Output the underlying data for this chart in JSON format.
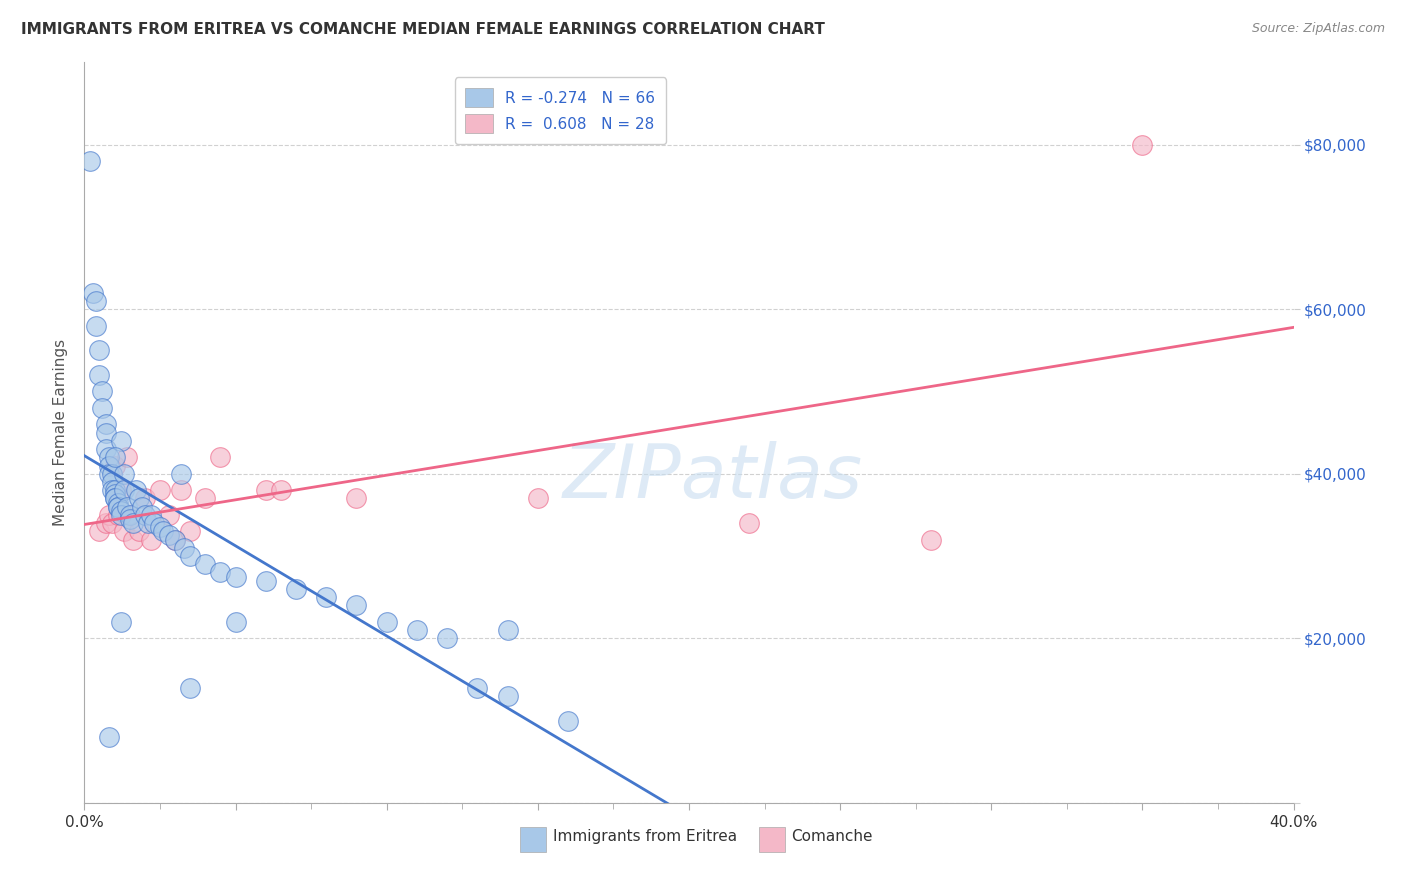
{
  "title": "IMMIGRANTS FROM ERITREA VS COMANCHE MEDIAN FEMALE EARNINGS CORRELATION CHART",
  "source": "Source: ZipAtlas.com",
  "ylabel": "Median Female Earnings",
  "R1": -0.274,
  "N1": 66,
  "R2": 0.608,
  "N2": 28,
  "color1": "#a8c8e8",
  "color2": "#f4b8c8",
  "line_color1": "#4477cc",
  "line_color2": "#ee6688",
  "xlim": [
    0.0,
    0.4
  ],
  "ylim": [
    0,
    90000
  ],
  "yticks": [
    0,
    20000,
    40000,
    60000,
    80000
  ],
  "ytick_labels": [
    "",
    "$20,000",
    "$40,000",
    "$60,000",
    "$80,000"
  ],
  "xticks": [
    0.0,
    0.05,
    0.1,
    0.15,
    0.2,
    0.25,
    0.3,
    0.35,
    0.4
  ],
  "xtick_labels_show": {
    "0.0": "0.0%",
    "0.4": "40.0%"
  },
  "background_color": "#ffffff",
  "watermark": "ZIPatlas",
  "legend_label1": "Immigrants from Eritrea",
  "legend_label2": "Comanche",
  "blue_points_x": [
    0.002,
    0.003,
    0.004,
    0.004,
    0.005,
    0.005,
    0.006,
    0.006,
    0.007,
    0.007,
    0.007,
    0.008,
    0.008,
    0.008,
    0.009,
    0.009,
    0.009,
    0.01,
    0.01,
    0.01,
    0.01,
    0.011,
    0.011,
    0.011,
    0.012,
    0.012,
    0.012,
    0.013,
    0.013,
    0.014,
    0.015,
    0.015,
    0.016,
    0.017,
    0.018,
    0.019,
    0.02,
    0.021,
    0.022,
    0.023,
    0.025,
    0.026,
    0.028,
    0.03,
    0.032,
    0.033,
    0.035,
    0.04,
    0.045,
    0.05,
    0.06,
    0.07,
    0.08,
    0.09,
    0.1,
    0.11,
    0.12,
    0.13,
    0.14,
    0.16,
    0.008,
    0.012,
    0.035,
    0.05,
    0.14,
    0.01
  ],
  "blue_points_y": [
    78000,
    62000,
    61000,
    58000,
    55000,
    52000,
    50000,
    48000,
    46000,
    45000,
    43000,
    42000,
    41000,
    40000,
    40000,
    39000,
    38000,
    38000,
    37500,
    37000,
    37000,
    36500,
    36000,
    36000,
    35500,
    35000,
    44000,
    40000,
    38000,
    36000,
    35000,
    34500,
    34000,
    38000,
    37000,
    36000,
    35000,
    34000,
    35000,
    34000,
    33500,
    33000,
    32500,
    32000,
    40000,
    31000,
    30000,
    29000,
    28000,
    27500,
    27000,
    26000,
    25000,
    24000,
    22000,
    21000,
    20000,
    14000,
    13000,
    10000,
    8000,
    22000,
    14000,
    22000,
    21000,
    42000
  ],
  "pink_points_x": [
    0.005,
    0.007,
    0.008,
    0.009,
    0.01,
    0.011,
    0.012,
    0.013,
    0.014,
    0.015,
    0.016,
    0.018,
    0.02,
    0.022,
    0.025,
    0.028,
    0.03,
    0.032,
    0.035,
    0.04,
    0.045,
    0.06,
    0.065,
    0.09,
    0.15,
    0.22,
    0.28,
    0.35
  ],
  "pink_points_y": [
    33000,
    34000,
    35000,
    34000,
    41000,
    35000,
    38000,
    33000,
    42000,
    35000,
    32000,
    33000,
    37000,
    32000,
    38000,
    35000,
    32000,
    38000,
    33000,
    37000,
    42000,
    38000,
    38000,
    37000,
    37000,
    34000,
    32000,
    80000
  ]
}
